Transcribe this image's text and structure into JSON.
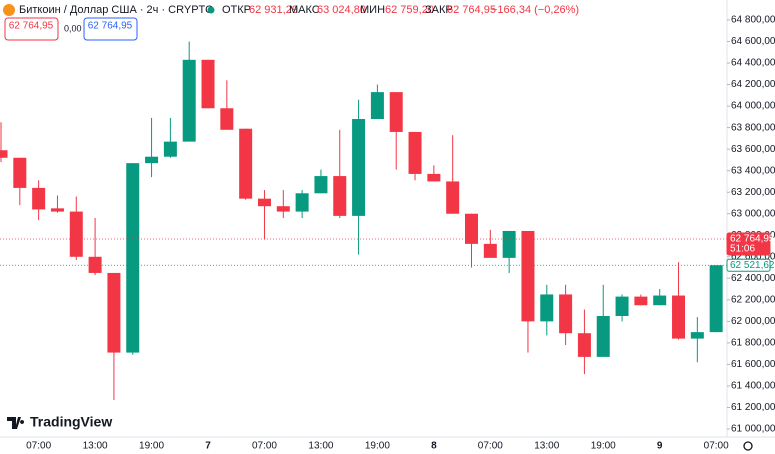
{
  "header": {
    "symbol": "Биткоин / Доллар США · 2ч · CRYPTO",
    "open_label": "ОТКР",
    "open": "62 931,29",
    "high_label": "МАКС",
    "high": "63 024,80",
    "low_label": "МИН",
    "low": "62 759,20",
    "close_label": "ЗАКР",
    "close": "62 764,95",
    "change": "−166,34 (−0,26%)",
    "sell": "62 764,95",
    "spread": "0,00",
    "buy": "62 764,95"
  },
  "logo": "TradingView",
  "chart_data": {
    "type": "candlestick",
    "up_color": "#089981",
    "down_color": "#f23645",
    "categories": [
      null,
      null,
      "07:00",
      null,
      null,
      "13:00",
      null,
      null,
      "19:00",
      null,
      null,
      "7",
      null,
      null,
      "07:00",
      null,
      null,
      "13:00",
      null,
      null,
      "19:00",
      null,
      null,
      "8",
      null,
      null,
      "07:00",
      null,
      null,
      "13:00",
      null,
      null,
      "19:00",
      null,
      null,
      "9",
      null,
      null,
      "07:00"
    ],
    "ohlc": [
      [
        63590,
        63850,
        63480,
        63520
      ],
      [
        63520,
        63520,
        63080,
        63240
      ],
      [
        63240,
        63310,
        62940,
        63040
      ],
      [
        63050,
        63170,
        63010,
        63020
      ],
      [
        63020,
        63160,
        62570,
        62600
      ],
      [
        62600,
        62960,
        62430,
        62450
      ],
      [
        62450,
        62450,
        61270,
        61710
      ],
      [
        61710,
        63470,
        61690,
        63470
      ],
      [
        63470,
        63890,
        63340,
        63530
      ],
      [
        63530,
        63890,
        63520,
        63670
      ],
      [
        63670,
        64600,
        63670,
        64430
      ],
      [
        64430,
        64430,
        63980,
        63980
      ],
      [
        63980,
        64240,
        63780,
        63780
      ],
      [
        63790,
        63790,
        63130,
        63140
      ],
      [
        63140,
        63220,
        62760,
        63070
      ],
      [
        63070,
        63220,
        62960,
        63020
      ],
      [
        63020,
        63220,
        62960,
        63190
      ],
      [
        63190,
        63410,
        63190,
        63350
      ],
      [
        63350,
        63780,
        62960,
        62980
      ],
      [
        62980,
        64060,
        62620,
        63880
      ],
      [
        63880,
        64200,
        63880,
        64130
      ],
      [
        64130,
        64130,
        63410,
        63760
      ],
      [
        63760,
        63760,
        63310,
        63370
      ],
      [
        63370,
        63450,
        63300,
        63300
      ],
      [
        63300,
        63730,
        63000,
        63000
      ],
      [
        63000,
        63000,
        62500,
        62720
      ],
      [
        62720,
        62850,
        62590,
        62590
      ],
      [
        62590,
        62840,
        62450,
        62840
      ],
      [
        62840,
        62840,
        61710,
        62000
      ],
      [
        62000,
        62340,
        61870,
        62250
      ],
      [
        62250,
        62340,
        61780,
        61890
      ],
      [
        61890,
        62110,
        61510,
        61670
      ],
      [
        61670,
        62340,
        61670,
        62050
      ],
      [
        62050,
        62250,
        62000,
        62230
      ],
      [
        62230,
        62250,
        62150,
        62150
      ],
      [
        62150,
        62300,
        62150,
        62240
      ],
      [
        62240,
        62550,
        61830,
        61840
      ],
      [
        61840,
        62040,
        61620,
        61900
      ],
      [
        61900,
        62521.62,
        61900,
        62521.62
      ]
    ],
    "ylim": [
      61000,
      64800
    ],
    "yticks": [
      {
        "value": 61000,
        "label": "61 000,00"
      },
      {
        "value": 61200,
        "label": "61 200,00"
      },
      {
        "value": 61400,
        "label": "61 400,00"
      },
      {
        "value": 61600,
        "label": "61 600,00"
      },
      {
        "value": 61800,
        "label": "61 800,00"
      },
      {
        "value": 62000,
        "label": "62 000,00"
      },
      {
        "value": 62200,
        "label": "62 200,00"
      },
      {
        "value": 62400,
        "label": "62 400,00"
      },
      {
        "value": 62600,
        "label": "62 600,00"
      },
      {
        "value": 62800,
        "label": "62 800,00"
      },
      {
        "value": 63000,
        "label": "63 000,00"
      },
      {
        "value": 63200,
        "label": "63 200,00"
      },
      {
        "value": 63400,
        "label": "63 400,00"
      },
      {
        "value": 63600,
        "label": "63 600,00"
      },
      {
        "value": 63800,
        "label": "63 800,00"
      },
      {
        "value": 64000,
        "label": "64 000,00"
      },
      {
        "value": 64200,
        "label": "64 200,00"
      },
      {
        "value": 64400,
        "label": "64 400,00"
      },
      {
        "value": 64600,
        "label": "64 600,00"
      },
      {
        "value": 64800,
        "label": "64 800,00"
      }
    ],
    "grid": false,
    "price_labels": [
      {
        "value": 62764.95,
        "label": "62 764,95",
        "countdown": "51:06",
        "color": "#f23645"
      },
      {
        "value": 62521.62,
        "label": "62 521,62",
        "color": "#089981"
      }
    ]
  }
}
